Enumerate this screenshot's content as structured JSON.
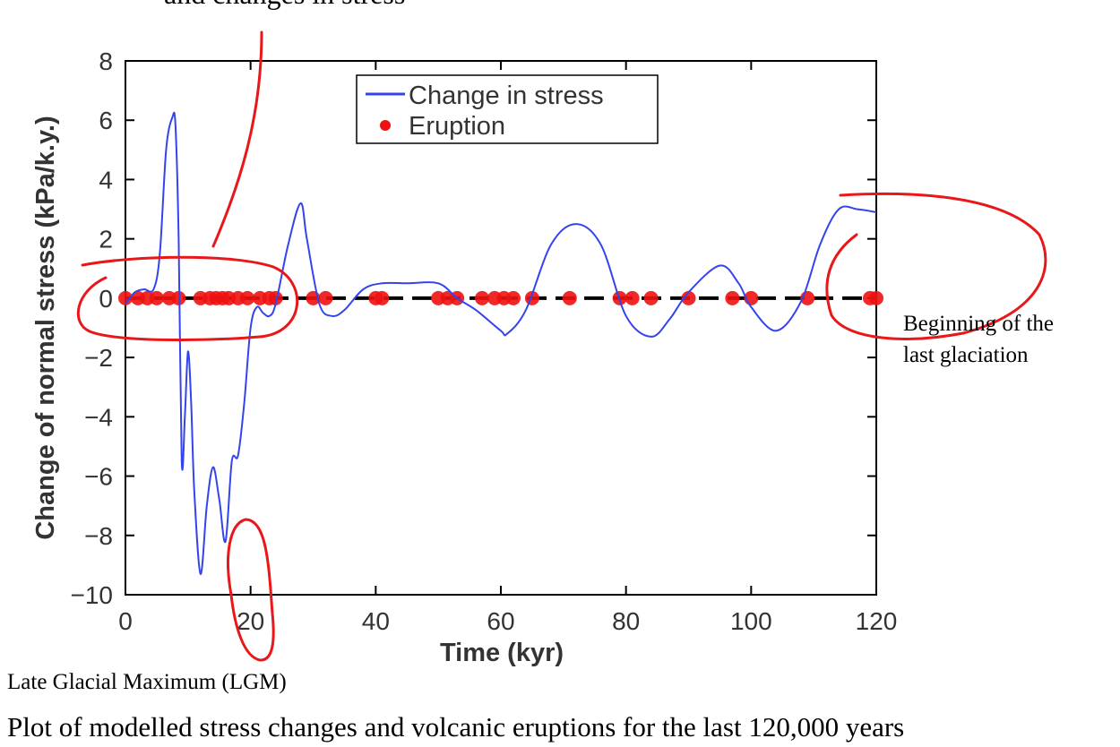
{
  "chart_data": {
    "type": "line",
    "ylabel": "Change of normal stress (kPa/k.y.)",
    "xlabel": "Time (kyr)",
    "xlim": [
      0,
      120
    ],
    "ylim": [
      -10,
      8
    ],
    "x_ticks": [
      0,
      20,
      40,
      60,
      80,
      100,
      120
    ],
    "y_ticks": [
      8,
      6,
      4,
      2,
      0,
      -2,
      -4,
      -6,
      -8,
      -10
    ],
    "x_tick_labels": [
      "0",
      "20",
      "40",
      "60",
      "80",
      "100",
      "120"
    ],
    "y_tick_labels": [
      "8",
      "6",
      "4",
      "2",
      "0",
      "−2",
      "−4",
      "−6",
      "−8",
      "−10"
    ],
    "legend": {
      "position": "top-center",
      "entries": [
        "Change in stress",
        "Eruption"
      ]
    },
    "series": [
      {
        "name": "Change in stress",
        "kind": "line",
        "color": "#3344ee",
        "x": [
          0,
          1.5,
          3,
          4.5,
          5.5,
          6.5,
          7.5,
          8,
          8.5,
          9,
          9.5,
          10,
          10.5,
          11,
          12,
          13,
          14,
          15,
          16,
          17,
          18,
          19,
          20,
          21,
          22,
          23,
          24,
          26,
          28,
          29,
          31,
          33,
          35,
          38,
          41,
          45,
          50,
          53,
          56,
          60,
          61,
          64,
          68,
          72,
          76,
          80,
          84,
          87,
          90,
          95,
          98,
          100,
          104,
          108,
          111,
          114,
          117,
          120
        ],
        "y": [
          -0.2,
          0.2,
          0.3,
          0.3,
          1.5,
          5.0,
          6.1,
          5.8,
          2.0,
          -5.5,
          -4.0,
          -1.8,
          -3.5,
          -6.5,
          -9.3,
          -7.0,
          -5.7,
          -6.8,
          -8.2,
          -5.5,
          -5.3,
          -3.5,
          -1.0,
          -0.3,
          -0.5,
          -0.6,
          -0.2,
          1.8,
          3.2,
          2.0,
          -0.2,
          -0.6,
          -0.4,
          0.3,
          0.5,
          0.5,
          0.5,
          0.0,
          -0.4,
          -1.1,
          -1.2,
          -0.4,
          1.8,
          2.5,
          1.8,
          -0.6,
          -1.3,
          -0.7,
          0.2,
          1.1,
          0.5,
          -0.3,
          -1.1,
          -0.1,
          1.8,
          3.0,
          3.0,
          2.9
        ]
      },
      {
        "name": "Eruption",
        "kind": "scatter",
        "color": "#ee1111",
        "x": [
          0,
          2,
          3.5,
          5,
          7,
          8.5,
          12,
          13.5,
          14.5,
          15.5,
          16.5,
          18,
          19.5,
          21.5,
          23,
          24,
          30,
          32,
          40,
          41,
          50,
          51.5,
          53,
          57,
          59,
          60.5,
          62,
          65,
          71,
          79,
          81,
          84,
          90,
          97,
          100,
          109,
          119,
          120
        ],
        "y": [
          0,
          0,
          0,
          0,
          0,
          0,
          0,
          0,
          0,
          0,
          0,
          0,
          0,
          0,
          0,
          0,
          0,
          0,
          0,
          0,
          0,
          0,
          0,
          0,
          0,
          0,
          0,
          0,
          0,
          0,
          0,
          0,
          0,
          0,
          0,
          0,
          0,
          0
        ]
      }
    ]
  },
  "annotations": {
    "top_fragment": "and changes in stress",
    "lgm_label": "Late Glacial Maximum (LGM)",
    "glaciation_line1": "Beginning of the",
    "glaciation_line2": "last glaciation",
    "caption": "Plot of modelled stress changes and volcanic eruptions for the last 120,000 years",
    "pen_color": "#e8181a"
  }
}
